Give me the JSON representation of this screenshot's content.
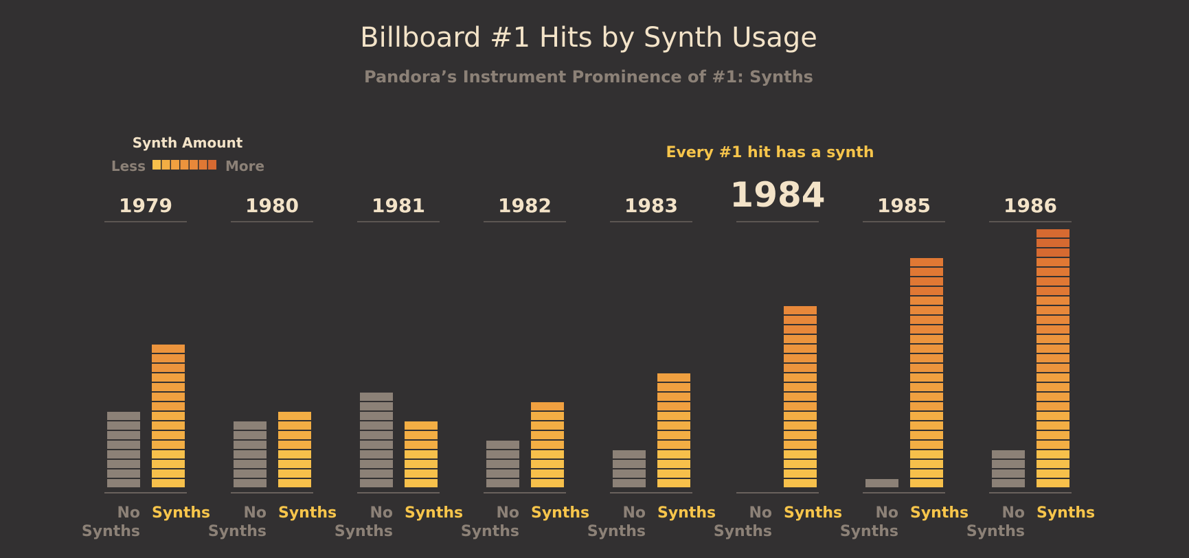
{
  "chart_data": {
    "type": "bar",
    "title": "Billboard #1 Hits by Synth Usage",
    "subtitle": "Pandora’s Instrument Prominence of #1: Synths",
    "legend": {
      "title": "Synth Amount",
      "less_label": "Less",
      "more_label": "More",
      "placement": "top-left"
    },
    "annotation": "Every #1 hit has a synth",
    "highlight_category": "1984",
    "categories": [
      "1979",
      "1980",
      "1981",
      "1982",
      "1983",
      "1984",
      "1985",
      "1986"
    ],
    "series": [
      {
        "name": "No Synths",
        "values": [
          8,
          7,
          10,
          5,
          4,
          0,
          1,
          4
        ]
      },
      {
        "name": "Synths",
        "values": [
          15,
          8,
          7,
          9,
          12,
          19,
          24,
          27
        ]
      }
    ],
    "series_label_first_line": "No",
    "series_label_second_line": "Synths",
    "ylim": [
      0,
      28
    ],
    "colors": {
      "background": "#323031",
      "no_synths": "#8c8177",
      "synth_scale": [
        "#f7c04b",
        "#f3ae44",
        "#f0a040",
        "#ec943d",
        "#e8883a",
        "#e07834",
        "#d66a31"
      ],
      "title": "#f3e3c8",
      "subtitle": "#8c8177",
      "annotation": "#f7c54b",
      "axis_line": "#6a625d"
    }
  }
}
